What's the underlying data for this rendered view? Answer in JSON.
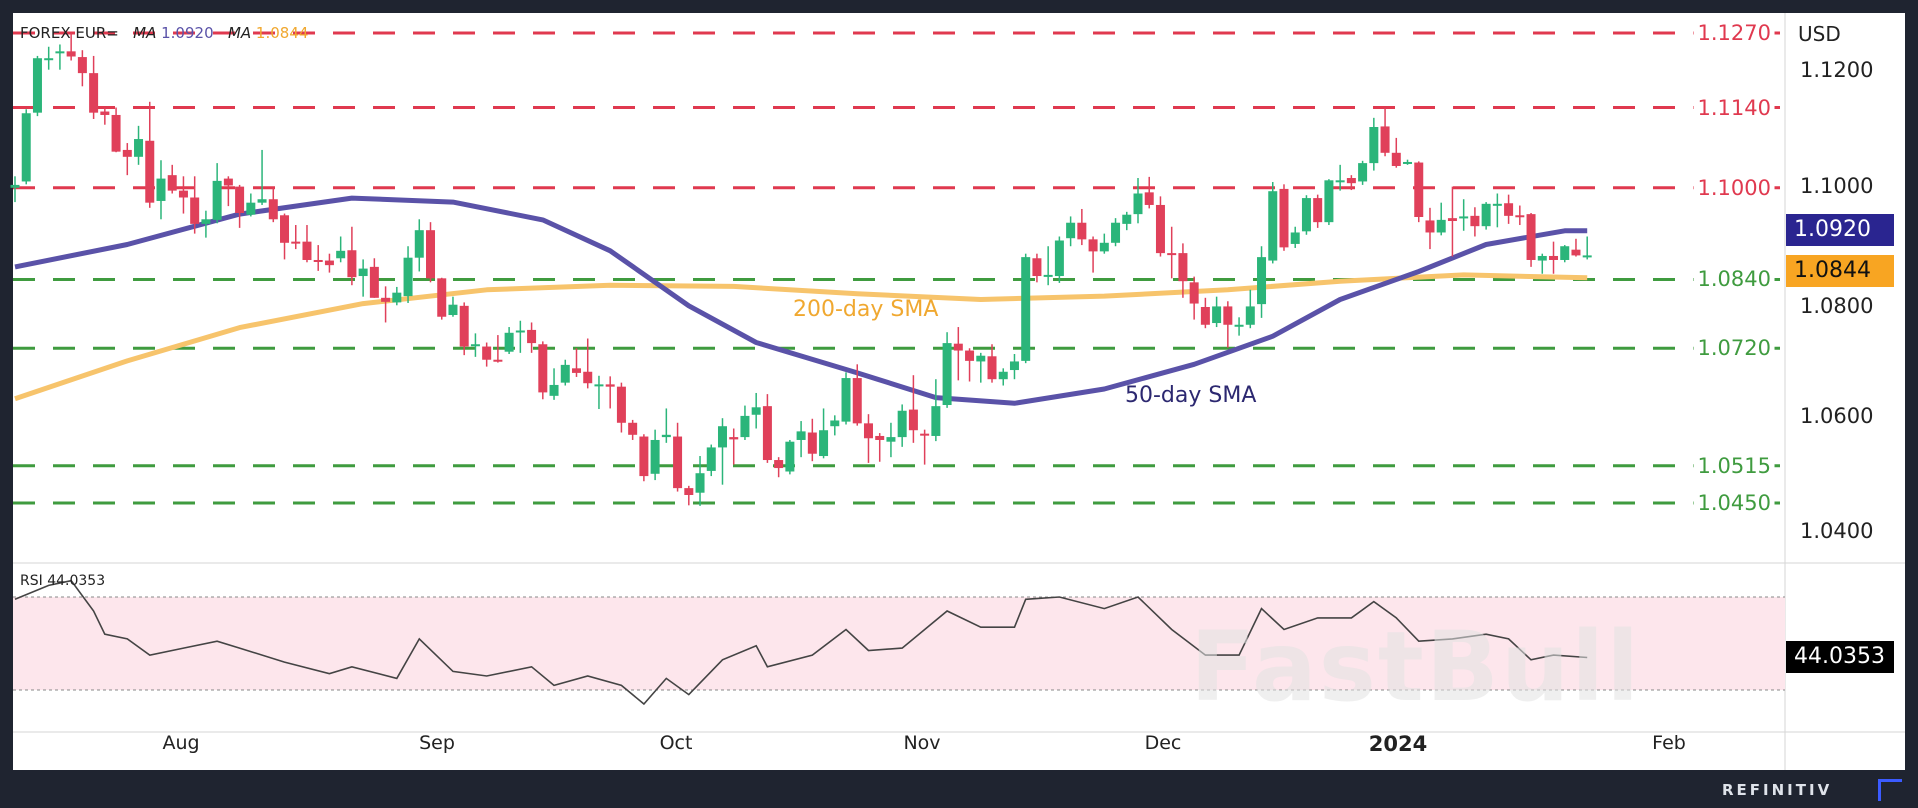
{
  "legend": {
    "symbol": "FOREX EUR=",
    "ma_label": "MA",
    "ma50_value": "1.0920",
    "ma200_value": "1.0844"
  },
  "colors": {
    "up": "#2bb57a",
    "down": "#e0405a",
    "ma50": "#5a52a8",
    "ma200": "#f7c46c",
    "resistance": "#e0394f",
    "support": "#3f9b3f",
    "rsi_line": "#444444",
    "rsi_band": "#fde6ec"
  },
  "annotations": {
    "sma200": "200-day SMA",
    "sma50": "50-day SMA"
  },
  "price_axis": {
    "unit": "USD",
    "ticks": [
      "1.1200",
      "1.1000",
      "1.0800",
      "1.0600",
      "1.0400"
    ]
  },
  "badges": {
    "ma50": "1.0920",
    "ma200": "1.0844",
    "rsi": "44.0353"
  },
  "rsi": {
    "label": "RSI",
    "value": "44.0353"
  },
  "time_axis": {
    "labels": [
      "Aug",
      "Sep",
      "Oct",
      "Nov",
      "Dec",
      "2024",
      "Feb"
    ]
  },
  "footer": {
    "brand": "REFINITIV"
  },
  "watermark": "FastBull",
  "chart_data": {
    "type": "candlestick",
    "ylim": [
      1.0365,
      1.129
    ],
    "levels": [
      {
        "value": "1.1270",
        "kind": "resistance"
      },
      {
        "value": "1.1140",
        "kind": "resistance"
      },
      {
        "value": "1.1000",
        "kind": "resistance"
      },
      {
        "value": "1.0840",
        "kind": "support"
      },
      {
        "value": "1.0720",
        "kind": "support"
      },
      {
        "value": "1.0515",
        "kind": "support"
      },
      {
        "value": "1.0450",
        "kind": "support"
      }
    ],
    "candles_ohlc": [
      [
        1.1,
        1.102,
        1.0975,
        1.1005
      ],
      [
        1.1011,
        1.1137,
        1.1006,
        1.113
      ],
      [
        1.1131,
        1.123,
        1.1125,
        1.1226
      ],
      [
        1.1224,
        1.1246,
        1.1206,
        1.1226
      ],
      [
        1.1236,
        1.125,
        1.1206,
        1.1238
      ],
      [
        1.1238,
        1.127,
        1.1222,
        1.1229
      ],
      [
        1.1228,
        1.124,
        1.1177,
        1.12
      ],
      [
        1.12,
        1.123,
        1.112,
        1.1131
      ],
      [
        1.1133,
        1.114,
        1.111,
        1.1127
      ],
      [
        1.1127,
        1.114,
        1.1062,
        1.1063
      ],
      [
        1.1066,
        1.1078,
        1.1022,
        1.1054
      ],
      [
        1.1054,
        1.1108,
        1.104,
        1.1085
      ],
      [
        1.1082,
        1.115,
        1.0965,
        1.0974
      ],
      [
        1.0977,
        1.1048,
        1.0945,
        1.1016
      ],
      [
        1.1022,
        1.104,
        1.099,
        1.0995
      ],
      [
        1.0995,
        1.102,
        1.0955,
        1.0983
      ],
      [
        1.0983,
        1.102,
        1.092,
        1.0937
      ],
      [
        1.0937,
        1.096,
        1.0913,
        1.0945
      ],
      [
        1.0944,
        1.1043,
        1.0938,
        1.1012
      ],
      [
        1.1016,
        1.102,
        1.0968,
        1.1004
      ],
      [
        1.1002,
        1.1005,
        1.093,
        1.0956
      ],
      [
        1.0953,
        1.099,
        1.095,
        1.0974
      ],
      [
        1.0974,
        1.1066,
        1.097,
        1.098
      ],
      [
        1.098,
        1.1,
        1.094,
        1.0945
      ],
      [
        1.0952,
        1.0955,
        1.0875,
        1.0904
      ],
      [
        1.0906,
        1.0935,
        1.0893,
        1.0904
      ],
      [
        1.0906,
        1.0935,
        1.087,
        1.0874
      ],
      [
        1.0874,
        1.09,
        1.0855,
        1.0873
      ],
      [
        1.0873,
        1.0885,
        1.0852,
        1.0865
      ],
      [
        1.0877,
        1.0915,
        1.087,
        1.089
      ],
      [
        1.0891,
        1.0932,
        1.083,
        1.0844
      ],
      [
        1.0846,
        1.0875,
        1.081,
        1.0859
      ],
      [
        1.0862,
        1.0877,
        1.0808,
        1.0808
      ],
      [
        1.0808,
        1.0828,
        1.0765,
        1.0801
      ],
      [
        1.08,
        1.0827,
        1.0795,
        1.0817
      ],
      [
        1.0811,
        1.0898,
        1.0799,
        1.0878
      ],
      [
        1.0878,
        1.0945,
        1.0854,
        1.0926
      ],
      [
        1.0926,
        1.094,
        1.0835,
        1.0842
      ],
      [
        1.0842,
        1.0843,
        1.077,
        1.0775
      ],
      [
        1.0778,
        1.081,
        1.0775,
        1.0796
      ],
      [
        1.0794,
        1.08,
        1.0708,
        1.0723
      ],
      [
        1.0725,
        1.0746,
        1.0705,
        1.0727
      ],
      [
        1.0723,
        1.073,
        1.0688,
        1.07
      ],
      [
        1.07,
        1.0743,
        1.0695,
        1.0698
      ],
      [
        1.0714,
        1.0757,
        1.071,
        1.0747
      ],
      [
        1.0748,
        1.0768,
        1.0712,
        1.0751
      ],
      [
        1.0752,
        1.0765,
        1.0712,
        1.0729
      ],
      [
        1.0727,
        1.0732,
        1.0631,
        1.0643
      ],
      [
        1.0637,
        1.0685,
        1.063,
        1.0656
      ],
      [
        1.066,
        1.07,
        1.0655,
        1.0691
      ],
      [
        1.0685,
        1.072,
        1.067,
        1.0677
      ],
      [
        1.0679,
        1.0737,
        1.065,
        1.0659
      ],
      [
        1.0657,
        1.0672,
        1.0614,
        1.0657
      ],
      [
        1.0657,
        1.0671,
        1.0615,
        1.0653
      ],
      [
        1.0653,
        1.066,
        1.0573,
        1.059
      ],
      [
        1.059,
        1.0595,
        1.056,
        1.0569
      ],
      [
        1.0566,
        1.057,
        1.0488,
        1.0497
      ],
      [
        1.0501,
        1.0578,
        1.049,
        1.056
      ],
      [
        1.0565,
        1.0615,
        1.0555,
        1.0569
      ],
      [
        1.0566,
        1.059,
        1.047,
        1.0476
      ],
      [
        1.0476,
        1.048,
        1.0446,
        1.0464
      ],
      [
        1.0468,
        1.0532,
        1.0445,
        1.0502
      ],
      [
        1.0506,
        1.0552,
        1.0497,
        1.0547
      ],
      [
        1.0547,
        1.0598,
        1.0482,
        1.0584
      ],
      [
        1.0565,
        1.058,
        1.0517,
        1.0561
      ],
      [
        1.0565,
        1.062,
        1.056,
        1.0602
      ],
      [
        1.0604,
        1.0642,
        1.058,
        1.0617
      ],
      [
        1.0619,
        1.064,
        1.052,
        1.0525
      ],
      [
        1.0525,
        1.053,
        1.0495,
        1.0511
      ],
      [
        1.0505,
        1.056,
        1.05,
        1.0557
      ],
      [
        1.056,
        1.0593,
        1.053,
        1.0575
      ],
      [
        1.0573,
        1.0597,
        1.0523,
        1.0536
      ],
      [
        1.0532,
        1.0615,
        1.0528,
        1.0577
      ],
      [
        1.0584,
        1.0603,
        1.0568,
        1.0594
      ],
      [
        1.0592,
        1.0678,
        1.0587,
        1.0668
      ],
      [
        1.0668,
        1.0692,
        1.0585,
        1.0589
      ],
      [
        1.0589,
        1.0605,
        1.052,
        1.0563
      ],
      [
        1.0567,
        1.0572,
        1.0522,
        1.056
      ],
      [
        1.0557,
        1.059,
        1.053,
        1.0565
      ],
      [
        1.0565,
        1.0622,
        1.0548,
        1.0611
      ],
      [
        1.0613,
        1.0673,
        1.0555,
        1.0577
      ],
      [
        1.0571,
        1.0578,
        1.0517,
        1.057
      ],
      [
        1.0567,
        1.0666,
        1.0558,
        1.0619
      ],
      [
        1.0621,
        1.0748,
        1.0616,
        1.0729
      ],
      [
        1.0728,
        1.0757,
        1.0664,
        1.0716
      ],
      [
        1.0716,
        1.072,
        1.0662,
        1.0698
      ],
      [
        1.0697,
        1.0712,
        1.066,
        1.0707
      ],
      [
        1.0706,
        1.0727,
        1.066,
        1.0666
      ],
      [
        1.0666,
        1.0685,
        1.0655,
        1.0679
      ],
      [
        1.0682,
        1.071,
        1.0666,
        1.0697
      ],
      [
        1.0698,
        1.0885,
        1.0694,
        1.0879
      ],
      [
        1.0877,
        1.0885,
        1.0835,
        1.0846
      ],
      [
        1.0846,
        1.0898,
        1.083,
        1.0848
      ],
      [
        1.0846,
        1.0915,
        1.0834,
        1.0908
      ],
      [
        1.0912,
        1.095,
        1.0898,
        1.0939
      ],
      [
        1.0939,
        1.0963,
        1.09,
        1.091
      ],
      [
        1.091,
        1.0915,
        1.0852,
        1.0889
      ],
      [
        1.0889,
        1.092,
        1.0885,
        1.0904
      ],
      [
        1.0904,
        1.0947,
        1.0898,
        1.0939
      ],
      [
        1.0937,
        1.0958,
        1.0926,
        1.0953
      ],
      [
        1.0954,
        1.1017,
        1.0938,
        1.099
      ],
      [
        1.0992,
        1.1019,
        1.0964,
        1.097
      ],
      [
        1.097,
        1.0985,
        1.088,
        1.0886
      ],
      [
        1.0886,
        1.0932,
        1.0842,
        1.0885
      ],
      [
        1.0886,
        1.0903,
        1.0808,
        1.0837
      ],
      [
        1.0835,
        1.0845,
        1.077,
        1.0798
      ],
      [
        1.0792,
        1.0808,
        1.0755,
        1.0761
      ],
      [
        1.0764,
        1.081,
        1.0757,
        1.0793
      ],
      [
        1.0793,
        1.0802,
        1.0721,
        1.0761
      ],
      [
        1.0761,
        1.0774,
        1.0742,
        1.0761
      ],
      [
        1.0761,
        1.0822,
        1.0755,
        1.0793
      ],
      [
        1.0797,
        1.0898,
        1.0773,
        1.0879
      ],
      [
        1.0873,
        1.101,
        1.0868,
        1.0994
      ],
      [
        1.0998,
        1.1006,
        1.089,
        1.0896
      ],
      [
        1.0902,
        1.0932,
        1.0895,
        1.0922
      ],
      [
        1.0924,
        1.0987,
        1.0918,
        1.0982
      ],
      [
        1.0982,
        1.0988,
        1.093,
        1.094
      ],
      [
        1.094,
        1.1015,
        1.0935,
        1.1013
      ],
      [
        1.1013,
        1.104,
        1.0995,
        1.1013
      ],
      [
        1.1017,
        1.1022,
        1.0996,
        1.1008
      ],
      [
        1.1011,
        1.1047,
        1.1005,
        1.1043
      ],
      [
        1.1043,
        1.1122,
        1.103,
        1.1106
      ],
      [
        1.1107,
        1.114,
        1.1055,
        1.1061
      ],
      [
        1.1061,
        1.1087,
        1.1035,
        1.1038
      ],
      [
        1.1045,
        1.1049,
        1.104,
        1.1045
      ],
      [
        1.1044,
        1.1046,
        1.094,
        1.0949
      ],
      [
        1.0943,
        1.0965,
        1.0893,
        1.0922
      ],
      [
        1.0922,
        1.0974,
        1.0917,
        1.0944
      ],
      [
        1.0947,
        1.1002,
        1.088,
        1.0942
      ],
      [
        1.0947,
        1.098,
        1.0925,
        1.095
      ],
      [
        1.0951,
        1.0966,
        1.0915,
        1.0933
      ],
      [
        1.0933,
        1.0975,
        1.0927,
        1.0972
      ],
      [
        1.0972,
        1.099,
        1.0931,
        1.0972
      ],
      [
        1.0973,
        1.0988,
        1.0937,
        1.0951
      ],
      [
        1.0952,
        1.0969,
        1.0935,
        1.095
      ],
      [
        1.0954,
        1.0956,
        1.0862,
        1.0874
      ],
      [
        1.0873,
        1.0885,
        1.085,
        1.0881
      ],
      [
        1.0881,
        1.0906,
        1.085,
        1.0874
      ],
      [
        1.0874,
        1.09,
        1.087,
        1.0898
      ],
      [
        1.0892,
        1.0911,
        1.088,
        1.0882
      ],
      [
        1.0881,
        1.0915,
        1.0875,
        1.0882
      ]
    ],
    "sma50": [
      [
        0,
        1.0862
      ],
      [
        10,
        1.0901
      ],
      [
        20,
        1.0954
      ],
      [
        30,
        1.0982
      ],
      [
        39,
        1.0975
      ],
      [
        47,
        1.0944
      ],
      [
        53,
        1.089
      ],
      [
        60,
        1.0794
      ],
      [
        66,
        1.073
      ],
      [
        75,
        1.0677
      ],
      [
        82,
        1.0634
      ],
      [
        89,
        1.0624
      ],
      [
        97,
        1.0649
      ],
      [
        105,
        1.0692
      ],
      [
        112,
        1.0741
      ],
      [
        118,
        1.0805
      ],
      [
        125,
        1.0854
      ],
      [
        131,
        1.0901
      ],
      [
        138,
        1.0925
      ],
      [
        140,
        1.0925
      ]
    ],
    "sma200": [
      [
        0,
        1.0632
      ],
      [
        10,
        1.0698
      ],
      [
        20,
        1.0756
      ],
      [
        31,
        1.0798
      ],
      [
        42,
        1.0822
      ],
      [
        53,
        1.083
      ],
      [
        64,
        1.0828
      ],
      [
        75,
        1.0815
      ],
      [
        86,
        1.0805
      ],
      [
        97,
        1.0811
      ],
      [
        108,
        1.0822
      ],
      [
        118,
        1.0837
      ],
      [
        129,
        1.0848
      ],
      [
        140,
        1.0843
      ]
    ],
    "rsi_levels": [
      70,
      30
    ],
    "rsi_series": [
      [
        0,
        69
      ],
      [
        3,
        75
      ],
      [
        5,
        77
      ],
      [
        7,
        64
      ],
      [
        8,
        54
      ],
      [
        10,
        52
      ],
      [
        12,
        45
      ],
      [
        15,
        48
      ],
      [
        18,
        51
      ],
      [
        20,
        48
      ],
      [
        24,
        42
      ],
      [
        28,
        37
      ],
      [
        30,
        40
      ],
      [
        34,
        35
      ],
      [
        36,
        52
      ],
      [
        39,
        38
      ],
      [
        42,
        36
      ],
      [
        46,
        40
      ],
      [
        48,
        32
      ],
      [
        51,
        36
      ],
      [
        54,
        32
      ],
      [
        56,
        24
      ],
      [
        58,
        35
      ],
      [
        60,
        28
      ],
      [
        63,
        43
      ],
      [
        66,
        49
      ],
      [
        67,
        40
      ],
      [
        71,
        45
      ],
      [
        74,
        56
      ],
      [
        76,
        47
      ],
      [
        79,
        48
      ],
      [
        83,
        64
      ],
      [
        86,
        57
      ],
      [
        89,
        57
      ],
      [
        90,
        69
      ],
      [
        93,
        70
      ],
      [
        97,
        65
      ],
      [
        100,
        70
      ],
      [
        103,
        56
      ],
      [
        106,
        45
      ],
      [
        109,
        45
      ],
      [
        111,
        65
      ],
      [
        113,
        56
      ],
      [
        116,
        61
      ],
      [
        119,
        61
      ],
      [
        121,
        68
      ],
      [
        123,
        61
      ],
      [
        125,
        51
      ],
      [
        128,
        52
      ],
      [
        131,
        54
      ],
      [
        133,
        52
      ],
      [
        135,
        43
      ],
      [
        137,
        45
      ],
      [
        140,
        44
      ]
    ]
  }
}
